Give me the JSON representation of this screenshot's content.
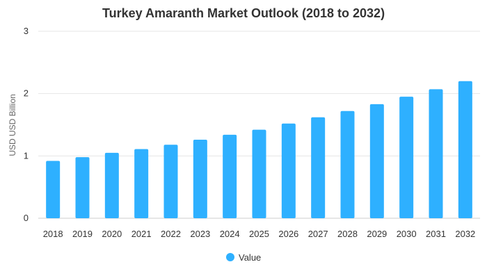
{
  "colors": {
    "bar": "#2eb0ff",
    "grid": "#e6e6e6",
    "text": "#333333",
    "axis_title": "#666666"
  },
  "chart_data": {
    "type": "bar",
    "title": "Turkey Amaranth Market Outlook (2018 to 2032)",
    "xlabel": "",
    "ylabel": "USD USD Billion",
    "ylim": [
      0,
      3
    ],
    "yticks": [
      0,
      1,
      2,
      3
    ],
    "grid": true,
    "legend_position": "bottom-center",
    "categories": [
      "2018",
      "2019",
      "2020",
      "2021",
      "2022",
      "2023",
      "2024",
      "2025",
      "2026",
      "2027",
      "2028",
      "2029",
      "2030",
      "2031",
      "2032"
    ],
    "series": [
      {
        "name": "Value",
        "values": [
          0.92,
          0.98,
          1.05,
          1.11,
          1.18,
          1.26,
          1.34,
          1.42,
          1.52,
          1.62,
          1.72,
          1.83,
          1.95,
          2.07,
          2.2
        ]
      }
    ]
  }
}
